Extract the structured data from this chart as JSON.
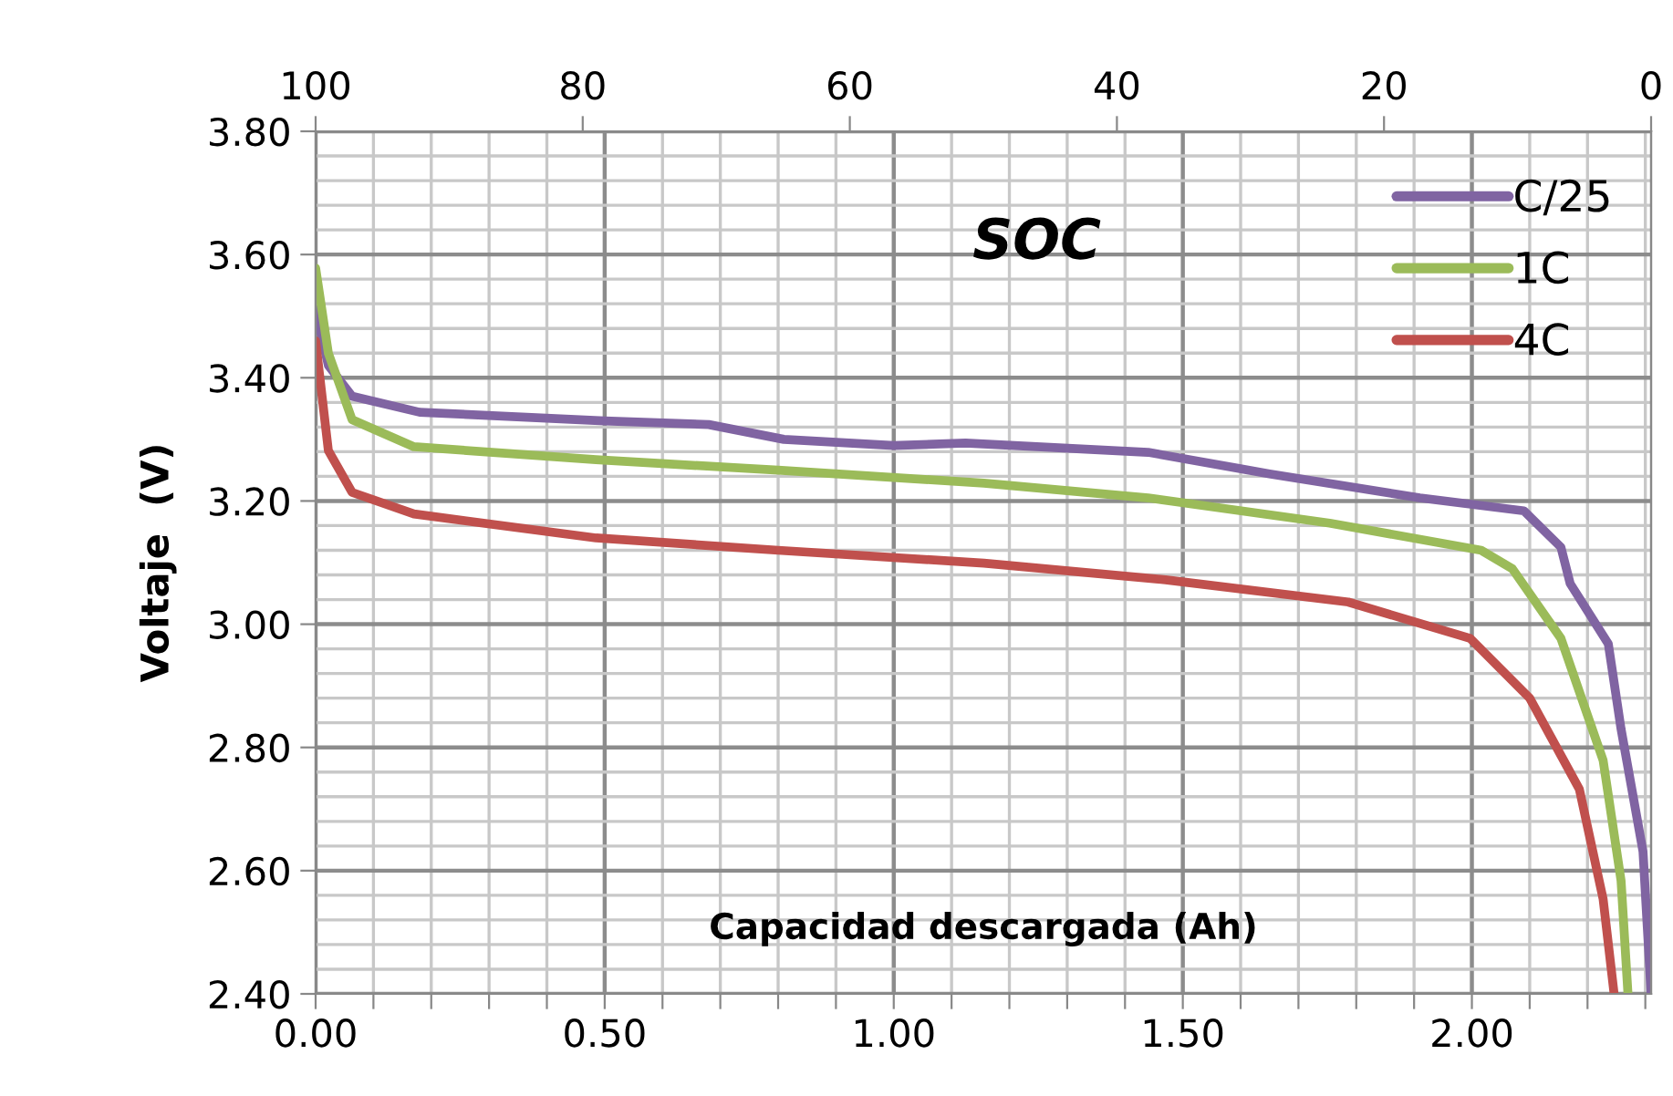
{
  "chart_data": {
    "type": "line",
    "x2label": "SOC",
    "xlabel": "Capacidad descargada (Ah)",
    "ylabel": "Voltaje  (V)",
    "xlim": [
      0,
      2.31
    ],
    "ylim": [
      2.4,
      3.8
    ],
    "x2lim": [
      100,
      0
    ],
    "xticks": [
      {
        "value": 0,
        "label": "0.00"
      },
      {
        "value": 0.1,
        "label": null
      },
      {
        "value": 0.2,
        "label": null
      },
      {
        "value": 0.3,
        "label": null
      },
      {
        "value": 0.4,
        "label": null
      },
      {
        "value": 0.5,
        "label": "0.50"
      },
      {
        "value": 0.6,
        "label": null
      },
      {
        "value": 0.7,
        "label": null
      },
      {
        "value": 0.8,
        "label": null
      },
      {
        "value": 0.9,
        "label": null
      },
      {
        "value": 1.0,
        "label": "1.00"
      },
      {
        "value": 1.1,
        "label": null
      },
      {
        "value": 1.2,
        "label": null
      },
      {
        "value": 1.3,
        "label": null
      },
      {
        "value": 1.4,
        "label": null
      },
      {
        "value": 1.5,
        "label": "1.50"
      },
      {
        "value": 1.6,
        "label": null
      },
      {
        "value": 1.7,
        "label": null
      },
      {
        "value": 1.8,
        "label": null
      },
      {
        "value": 1.9,
        "label": null
      },
      {
        "value": 2.0,
        "label": "2.00"
      },
      {
        "value": 2.1,
        "label": null
      },
      {
        "value": 2.2,
        "label": null
      },
      {
        "value": 2.3,
        "label": null
      }
    ],
    "yticks": [
      {
        "value": 2.4,
        "label": "2.40"
      },
      {
        "value": 2.44,
        "label": null
      },
      {
        "value": 2.48,
        "label": null
      },
      {
        "value": 2.52,
        "label": null
      },
      {
        "value": 2.56,
        "label": null
      },
      {
        "value": 2.6,
        "label": "2.60"
      },
      {
        "value": 2.64,
        "label": null
      },
      {
        "value": 2.68,
        "label": null
      },
      {
        "value": 2.72,
        "label": null
      },
      {
        "value": 2.76,
        "label": null
      },
      {
        "value": 2.8,
        "label": "2.80"
      },
      {
        "value": 2.84,
        "label": null
      },
      {
        "value": 2.88,
        "label": null
      },
      {
        "value": 2.92,
        "label": null
      },
      {
        "value": 2.96,
        "label": null
      },
      {
        "value": 3.0,
        "label": "3.00"
      },
      {
        "value": 3.04,
        "label": null
      },
      {
        "value": 3.08,
        "label": null
      },
      {
        "value": 3.12,
        "label": null
      },
      {
        "value": 3.16,
        "label": null
      },
      {
        "value": 3.2,
        "label": "3.20"
      },
      {
        "value": 3.24,
        "label": null
      },
      {
        "value": 3.28,
        "label": null
      },
      {
        "value": 3.32,
        "label": null
      },
      {
        "value": 3.36,
        "label": null
      },
      {
        "value": 3.4,
        "label": "3.40"
      },
      {
        "value": 3.44,
        "label": null
      },
      {
        "value": 3.48,
        "label": null
      },
      {
        "value": 3.52,
        "label": null
      },
      {
        "value": 3.56,
        "label": null
      },
      {
        "value": 3.6,
        "label": "3.60"
      },
      {
        "value": 3.64,
        "label": null
      },
      {
        "value": 3.68,
        "label": null
      },
      {
        "value": 3.72,
        "label": null
      },
      {
        "value": 3.76,
        "label": null
      },
      {
        "value": 3.8,
        "label": "3.80"
      }
    ],
    "x2ticks": [
      100,
      80,
      60,
      40,
      20,
      0
    ],
    "grid": true,
    "legend": "top right",
    "marker": "none",
    "line_style": "solid",
    "series": [
      {
        "name": "C/25",
        "color": "#8064a2",
        "x": [
          0,
          0.022,
          0.063,
          0.18,
          0.5,
          0.68,
          0.81,
          1.0,
          1.124,
          1.44,
          1.65,
          1.91,
          2.09,
          2.154,
          2.17,
          2.236,
          2.258,
          2.296,
          2.31
        ],
        "values": [
          3.51,
          3.42,
          3.37,
          3.344,
          3.33,
          3.324,
          3.3,
          3.29,
          3.294,
          3.279,
          3.244,
          3.205,
          3.184,
          3.125,
          3.066,
          2.968,
          2.83,
          2.631,
          2.4
        ]
      },
      {
        "name": "1C",
        "color": "#9bbb59",
        "x": [
          0,
          0.022,
          0.063,
          0.17,
          0.485,
          0.8,
          1.156,
          1.44,
          1.754,
          2.016,
          2.07,
          2.154,
          2.227,
          2.258,
          2.27
        ],
        "values": [
          3.578,
          3.44,
          3.332,
          3.288,
          3.267,
          3.25,
          3.229,
          3.205,
          3.164,
          3.12,
          3.09,
          2.977,
          2.779,
          2.584,
          2.4
        ]
      },
      {
        "name": "4C",
        "color": "#c0504d",
        "x": [
          0,
          0.022,
          0.063,
          0.17,
          0.485,
          0.8,
          1.156,
          1.47,
          1.786,
          1.997,
          2.1,
          2.186,
          2.227,
          2.246
        ],
        "values": [
          3.46,
          3.282,
          3.214,
          3.179,
          3.14,
          3.12,
          3.099,
          3.072,
          3.036,
          2.977,
          2.88,
          2.732,
          2.554,
          2.4
        ]
      }
    ]
  }
}
